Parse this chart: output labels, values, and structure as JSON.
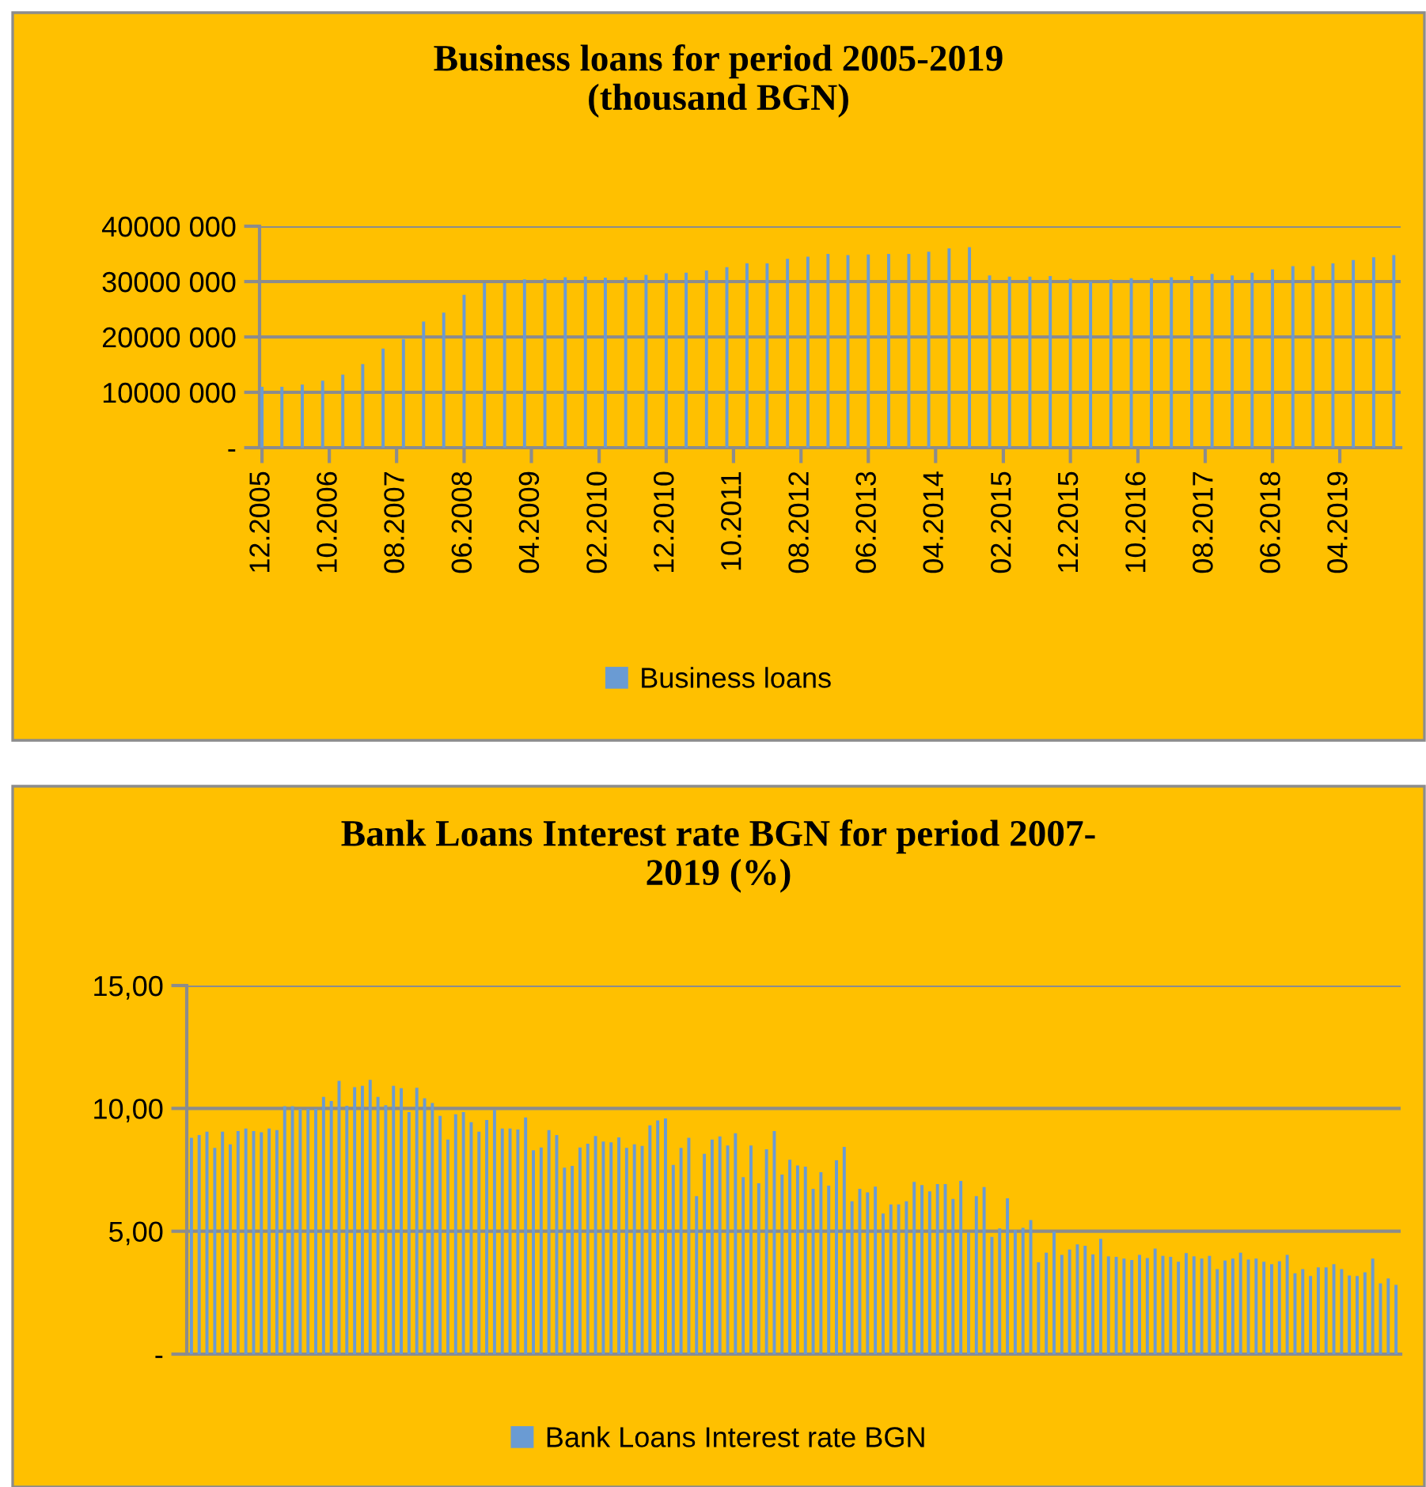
{
  "chart_data": [
    {
      "type": "bar",
      "title": "Business loans for period 2005-2019\n(thousand BGN)",
      "legend": "bottom",
      "grid": "y",
      "x": [
        "2005-12",
        "2006-03",
        "2006-06",
        "2006-09",
        "2006-12",
        "2007-03",
        "2007-06",
        "2007-09",
        "2007-12",
        "2008-03",
        "2008-06",
        "2008-09",
        "2008-12",
        "2009-03",
        "2009-06",
        "2009-09",
        "2009-12",
        "2010-03",
        "2010-06",
        "2010-09",
        "2010-12",
        "2011-03",
        "2011-06",
        "2011-09",
        "2011-12",
        "2012-03",
        "2012-06",
        "2012-09",
        "2012-12",
        "2013-03",
        "2013-06",
        "2013-09",
        "2013-12",
        "2014-03",
        "2014-06",
        "2014-09",
        "2014-12",
        "2015-03",
        "2015-06",
        "2015-09",
        "2015-12",
        "2016-03",
        "2016-06",
        "2016-09",
        "2016-12",
        "2017-03",
        "2017-06",
        "2017-09",
        "2017-12",
        "2018-03",
        "2018-06",
        "2018-09",
        "2018-12",
        "2019-03",
        "2019-06",
        "2019-09",
        "2019-12"
      ],
      "series": [
        {
          "name": "Business loans",
          "color": "#6a9bd3",
          "values": [
            11000000,
            11000000,
            11400000,
            12100000,
            13200000,
            15100000,
            17900000,
            19600000,
            22800000,
            24400000,
            27600000,
            29700000,
            29700000,
            30400000,
            30500000,
            30800000,
            30900000,
            30700000,
            30800000,
            31200000,
            31500000,
            31600000,
            32000000,
            32600000,
            33300000,
            33300000,
            34100000,
            34500000,
            35000000,
            34800000,
            34900000,
            35000000,
            35000000,
            35400000,
            36000000,
            36200000,
            31100000,
            30900000,
            30900000,
            31000000,
            30500000,
            30000000,
            30400000,
            30600000,
            30600000,
            30800000,
            31000000,
            31400000,
            31100000,
            31600000,
            32200000,
            32800000,
            32800000,
            33300000,
            33900000,
            34400000,
            34800000
          ]
        }
      ],
      "xlim": [
        "2005-11-20",
        "2020-01-01"
      ],
      "xticks": [
        {
          "value": "2005-12",
          "label": "12.2005"
        },
        {
          "value": "2006-10",
          "label": "10.2006"
        },
        {
          "value": "2007-08",
          "label": "08.2007"
        },
        {
          "value": "2008-06",
          "label": "06.2008"
        },
        {
          "value": "2009-04",
          "label": "04.2009"
        },
        {
          "value": "2010-02",
          "label": "02.2010"
        },
        {
          "value": "2010-12",
          "label": "12.2010"
        },
        {
          "value": "2011-10",
          "label": "10.2011"
        },
        {
          "value": "2012-08",
          "label": "08.2012"
        },
        {
          "value": "2013-06",
          "label": "06.2013"
        },
        {
          "value": "2014-04",
          "label": "04.2014"
        },
        {
          "value": "2015-02",
          "label": "02.2015"
        },
        {
          "value": "2015-12",
          "label": "12.2015"
        },
        {
          "value": "2016-10",
          "label": "10.2016"
        },
        {
          "value": "2017-08",
          "label": "08.2017"
        },
        {
          "value": "2018-06",
          "label": "06.2018"
        },
        {
          "value": "2019-04",
          "label": "04.2019"
        }
      ],
      "ylim": [
        0,
        40000000
      ],
      "yticks": [
        {
          "value": 0,
          "label": "-"
        },
        {
          "value": 10000000,
          "label": "10000 000"
        },
        {
          "value": 20000000,
          "label": "20000 000"
        },
        {
          "value": 30000000,
          "label": "30000 000"
        },
        {
          "value": 40000000,
          "label": "40000 000"
        }
      ]
    },
    {
      "type": "bar",
      "title": "Bank Loans Interest rate BGN for period 2007-\n2019 (%)",
      "legend": "bottom",
      "grid": "y",
      "tick_labels": "y",
      "categories": [
        null,
        null,
        null,
        null,
        null,
        null,
        null,
        null,
        null,
        null,
        null,
        null,
        null,
        null,
        null,
        null,
        null,
        null,
        null,
        null,
        null,
        null,
        null,
        null,
        null,
        null,
        null,
        null,
        null,
        null,
        null,
        null,
        null,
        null,
        null,
        null,
        null,
        null,
        null,
        null,
        null,
        null,
        null,
        null,
        null,
        null,
        null,
        null,
        null,
        null,
        null,
        null,
        null,
        null,
        null,
        null,
        null,
        null,
        null,
        null,
        null,
        null,
        null,
        null,
        null,
        null,
        null,
        null,
        null,
        null,
        null,
        null,
        null,
        null,
        null,
        null,
        null,
        null,
        null,
        null,
        null,
        null,
        null,
        null,
        null,
        null,
        null,
        null,
        null,
        null,
        null,
        null,
        null,
        null,
        null,
        null,
        null,
        null,
        null,
        null,
        null,
        null,
        null,
        null,
        null,
        null,
        null,
        null,
        null,
        null,
        null,
        null,
        null,
        null,
        null,
        null,
        null,
        null,
        null,
        null,
        null,
        null,
        null,
        null,
        null,
        null,
        null,
        null,
        null,
        null,
        null,
        null,
        null,
        null,
        null,
        null,
        null,
        null,
        null,
        null,
        null,
        null,
        null,
        null,
        null,
        null,
        null,
        null,
        null,
        null,
        null,
        null,
        null,
        null,
        null,
        null
      ],
      "series": [
        {
          "name": "Bank Loans Interest rate BGN",
          "color": "#6a9bd3",
          "values": [
            8.8,
            8.92,
            9.05,
            8.39,
            9.05,
            8.54,
            9.08,
            9.18,
            9.08,
            9.03,
            9.18,
            9.12,
            10.09,
            10.09,
            9.98,
            9.98,
            9.98,
            10.47,
            10.3,
            11.12,
            10.11,
            10.86,
            10.92,
            11.16,
            10.47,
            10.13,
            10.92,
            10.82,
            9.85,
            10.84,
            10.41,
            10.22,
            9.7,
            8.73,
            9.76,
            9.85,
            9.44,
            9.05,
            9.53,
            9.94,
            9.18,
            9.18,
            9.14,
            9.63,
            8.3,
            8.41,
            9.12,
            8.92,
            7.59,
            7.66,
            8.41,
            8.56,
            8.88,
            8.65,
            8.62,
            8.82,
            8.39,
            8.54,
            8.47,
            9.31,
            9.51,
            9.59,
            7.7,
            8.39,
            8.8,
            6.43,
            8.15,
            8.73,
            8.86,
            8.49,
            8.99,
            7.2,
            8.49,
            6.95,
            8.34,
            9.08,
            7.31,
            7.91,
            7.68,
            7.63,
            6.73,
            7.4,
            6.86,
            7.89,
            8.43,
            6.22,
            6.73,
            6.58,
            6.82,
            5.72,
            6.09,
            6.09,
            6.22,
            7.01,
            6.88,
            6.62,
            6.92,
            6.92,
            6.32,
            7.05,
            4.95,
            6.43,
            6.8,
            4.77,
            5.12,
            6.34,
            5.05,
            5.14,
            5.46,
            3.74,
            4.13,
            4.99,
            4.04,
            4.26,
            4.47,
            4.41,
            4.06,
            4.69,
            3.98,
            3.96,
            3.89,
            3.83,
            4.04,
            3.91,
            4.3,
            4.0,
            3.96,
            3.76,
            4.11,
            3.98,
            3.89,
            4.0,
            3.46,
            3.81,
            3.89,
            4.13,
            3.85,
            3.89,
            3.76,
            3.66,
            3.78,
            4.04,
            3.29,
            3.46,
            3.18,
            3.53,
            3.53,
            3.66,
            3.46,
            3.2,
            3.18,
            3.33,
            3.89,
            2.88,
            3.08,
            2.82
          ]
        }
      ],
      "ylim": [
        0,
        15
      ],
      "yticks": [
        {
          "value": 0,
          "label": "-"
        },
        {
          "value": 5,
          "label": "5,00"
        },
        {
          "value": 10,
          "label": "10,00"
        },
        {
          "value": 15,
          "label": "15,00"
        }
      ]
    }
  ]
}
